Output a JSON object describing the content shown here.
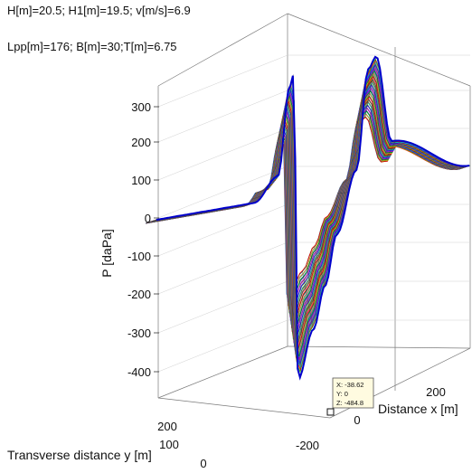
{
  "header": {
    "line1": "H[m]=20.5; H1[m]=19.5; v[m/s]=6.9",
    "line2": "Lpp[m]=176; B[m]=30;T[m]=6.75"
  },
  "chart_data": {
    "type": "surface3d",
    "zlabel": "P [daPa]",
    "xlabel": "Distance x [m]",
    "ylabel": "Transverse distance y [m]",
    "z_ticks": [
      300,
      200,
      100,
      0,
      -100,
      -200,
      -300,
      -400
    ],
    "z_tick_labels": [
      "300",
      "200",
      "100",
      "0",
      "-100",
      "-200",
      "-300",
      "-400"
    ],
    "x_ticks": [
      -200,
      0,
      200
    ],
    "x_tick_labels": [
      "-200",
      "0",
      "200"
    ],
    "y_ticks": [
      0,
      100,
      200
    ],
    "y_tick_labels": [
      "0",
      "100",
      "200"
    ],
    "zlim": [
      -485,
      380
    ],
    "grid": true,
    "data_tip": {
      "x": "X: -38.62",
      "y": "Y: 0",
      "z": "Z: -484.8"
    },
    "profile_along_x": [
      {
        "x": -400,
        "p": 0
      },
      {
        "x": -150,
        "p": 0
      },
      {
        "x": -90,
        "p": 60
      },
      {
        "x": -60,
        "p": 290
      },
      {
        "x": -50,
        "p": 320
      },
      {
        "x": -38.62,
        "p": -484.8
      },
      {
        "x": 0,
        "p": -360
      },
      {
        "x": 30,
        "p": -250
      },
      {
        "x": 60,
        "p": -120
      },
      {
        "x": 110,
        "p": 40
      },
      {
        "x": 140,
        "p": 300
      },
      {
        "x": 160,
        "p": 330
      },
      {
        "x": 200,
        "p": 100
      },
      {
        "x": 400,
        "p": 0
      }
    ],
    "line_colors": [
      "#1a1aff",
      "#00a000",
      "#ff0000",
      "#00bfbf",
      "#bf00bf",
      "#bfbf00",
      "#404040"
    ]
  }
}
